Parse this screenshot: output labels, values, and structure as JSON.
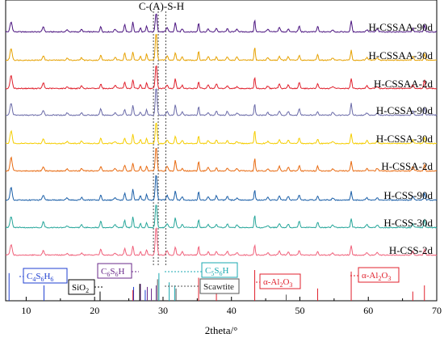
{
  "chart_data": {
    "type": "line",
    "title": "",
    "xlabel": "2theta/°",
    "ylabel": "",
    "xlim": [
      7,
      70
    ],
    "xticks": [
      10,
      20,
      30,
      40,
      50,
      60,
      70
    ],
    "top_annotation": "C-(A)-S-H",
    "dashed_reference_x": [
      28.6,
      29.3,
      30.4
    ],
    "series": [
      {
        "name": "H-CSSAA-90d",
        "color": "#4b1480"
      },
      {
        "name": "H-CSSAA-30d",
        "color": "#e6a100"
      },
      {
        "name": "H-CSSAA-2d",
        "color": "#e0202c"
      },
      {
        "name": "H-CSSA-90d",
        "color": "#6a6aa8"
      },
      {
        "name": "H-CSSA-30d",
        "color": "#f5cd00"
      },
      {
        "name": "H-CSSA-2d",
        "color": "#e86a10"
      },
      {
        "name": "H-CSS-90d",
        "color": "#1b5fa8"
      },
      {
        "name": "H-CSS-30d",
        "color": "#26a69a"
      },
      {
        "name": "H-CSS-2d",
        "color": "#f0607a"
      }
    ],
    "reference_phases": [
      {
        "label": "C4S6H6",
        "color": "#1f3fd0",
        "lines": [
          [
            7.5,
            0.9
          ],
          [
            12.6,
            0.5
          ],
          [
            25.7,
            0.45
          ],
          [
            27.4,
            0.35
          ]
        ]
      },
      {
        "label": "C6S6H",
        "color": "#6a2a8a",
        "lines": [
          [
            26.7,
            0.55
          ],
          [
            27.7,
            0.45
          ],
          [
            28.3,
            0.4
          ],
          [
            29.0,
            0.5
          ]
        ]
      },
      {
        "label": "C5S6H",
        "color": "#1aa8b0",
        "lines": [
          [
            29.4,
            0.9
          ],
          [
            30.9,
            0.6
          ],
          [
            31.7,
            0.5
          ]
        ]
      },
      {
        "label": "SiO2",
        "color": "#000000",
        "lines": [
          [
            20.8,
            0.3
          ],
          [
            26.6,
            0.55
          ]
        ]
      },
      {
        "label": "Scawtite",
        "color": "#555555",
        "lines": [
          [
            29.2,
            0.7
          ],
          [
            31.9,
            0.4
          ],
          [
            48.0,
            0.2
          ]
        ]
      },
      {
        "label": "α-Al2O3",
        "color": "#e0202c",
        "lines": [
          [
            25.6,
            0.35
          ],
          [
            35.2,
            0.75
          ],
          [
            37.8,
            0.3
          ],
          [
            43.4,
            1.0
          ],
          [
            52.6,
            0.4
          ],
          [
            57.5,
            0.95
          ],
          [
            66.5,
            0.3
          ],
          [
            68.2,
            0.5
          ]
        ]
      }
    ],
    "reference_labels": {
      "c4s6h6": {
        "main": "C",
        "s1": "4",
        "m2": "S",
        "s2": "6",
        "m3": "H",
        "s3": "6"
      },
      "c6s6h": {
        "main": "C",
        "s1": "6",
        "m2": "S",
        "s2": "6",
        "m3": "H"
      },
      "c5s6h": {
        "main": "C",
        "s1": "5",
        "m2": "S",
        "s2": "6",
        "m3": "H"
      },
      "sio2": {
        "main": "SiO",
        "s1": "2"
      },
      "scawtite": "Scawtite",
      "al2o3_a": {
        "main": "α-Al",
        "s1": "2",
        "m2": "O",
        "s2": "3"
      },
      "al2o3_b": {
        "main": "α-Al",
        "s1": "2",
        "m2": "O",
        "s2": "3"
      }
    }
  }
}
